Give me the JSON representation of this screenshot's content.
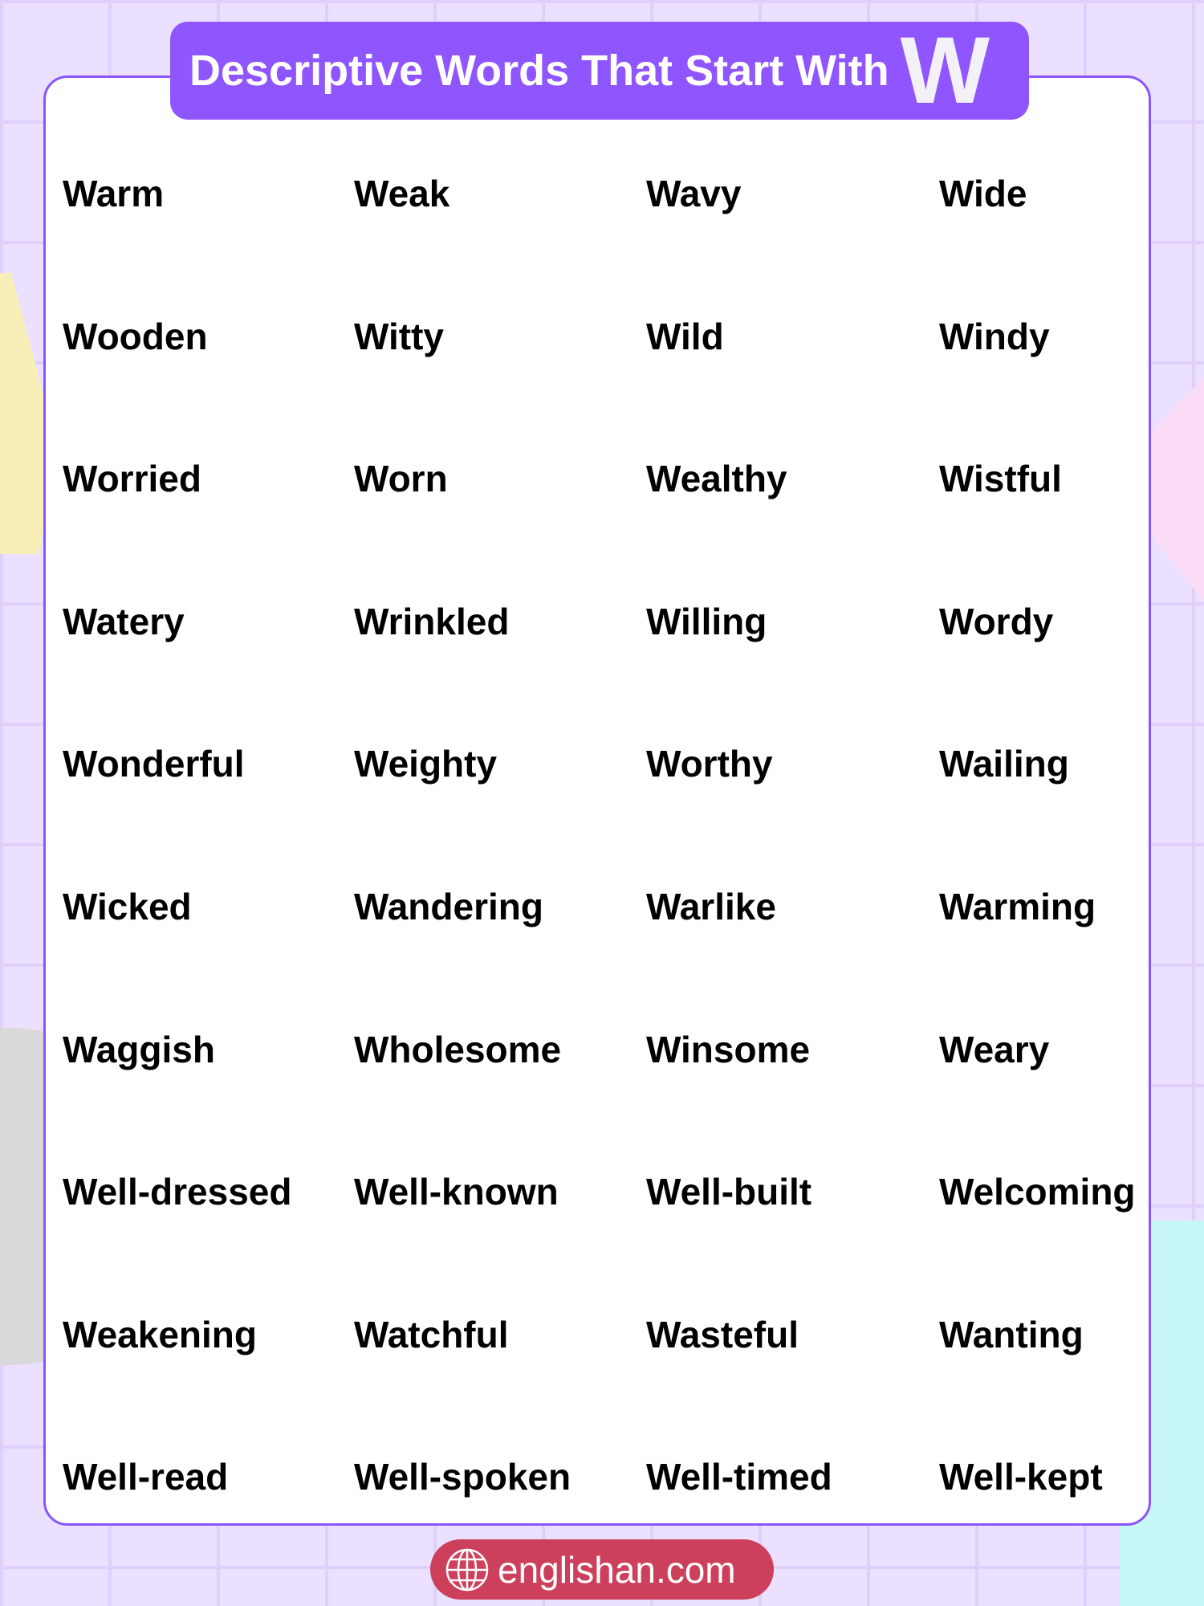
{
  "title": {
    "text": "Descriptive Words That Start With",
    "letter": "W"
  },
  "words": [
    [
      "Warm",
      "Weak",
      "Wavy",
      "Wide"
    ],
    [
      "Wooden",
      "Witty",
      "Wild",
      "Windy"
    ],
    [
      "Worried",
      "Worn",
      "Wealthy",
      "Wistful"
    ],
    [
      "Watery",
      "Wrinkled",
      "Willing",
      "Wordy"
    ],
    [
      "Wonderful",
      "Weighty",
      "Worthy",
      "Wailing"
    ],
    [
      "Wicked",
      "Wandering",
      "Warlike",
      "Warming"
    ],
    [
      "Waggish",
      "Wholesome",
      "Winsome",
      "Weary"
    ],
    [
      "Well-dressed",
      "Well-known",
      "Well-built",
      "Welcoming"
    ],
    [
      "Weakening",
      "Watchful",
      "Wasteful",
      "Wanting"
    ],
    [
      "Well-read",
      "Well-spoken",
      "Well-timed",
      "Well-kept"
    ]
  ],
  "footer": {
    "site": "englishan.com",
    "icon": "globe-icon"
  },
  "colors": {
    "accent": "#8f55ff",
    "footer": "#cc405c",
    "background": "#ebe0ff"
  }
}
